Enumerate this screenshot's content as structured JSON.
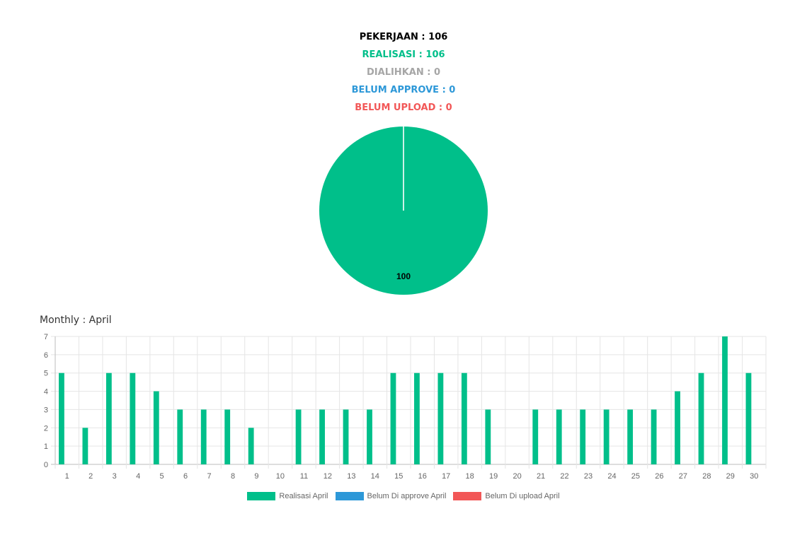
{
  "summary": {
    "pekerjaan": "PEKERJAAN : 106",
    "realisasi": "REALISASI : 106",
    "dialihkan": "DIALIHKAN : 0",
    "belum_approve": "BELUM APPROVE : 0",
    "belum_upload": "BELUM UPLOAD : 0"
  },
  "colors": {
    "realisasi": "#00bf8a",
    "dialihkan": "#a6a6a6",
    "belum_approve": "#2d98d8",
    "belum_upload": "#f25757"
  },
  "monthly_title": "Monthly : April",
  "legend": [
    "Realisasi April",
    "Belum Di approve April",
    "Belum Di upload April"
  ],
  "chart_data": [
    {
      "type": "pie",
      "slices": [
        {
          "label": "Realisasi",
          "value": 100,
          "color": "#00bf8a"
        }
      ],
      "data_labels": [
        "100"
      ]
    },
    {
      "type": "bar",
      "title": "Monthly : April",
      "categories": [
        "1",
        "2",
        "3",
        "4",
        "5",
        "6",
        "7",
        "8",
        "9",
        "10",
        "11",
        "12",
        "13",
        "14",
        "15",
        "16",
        "17",
        "18",
        "19",
        "20",
        "21",
        "22",
        "23",
        "24",
        "25",
        "26",
        "27",
        "28",
        "29",
        "30"
      ],
      "series": [
        {
          "name": "Realisasi April",
          "color": "#00bf8a",
          "values": [
            5,
            2,
            5,
            5,
            4,
            3,
            3,
            3,
            2,
            0,
            3,
            3,
            3,
            3,
            5,
            5,
            5,
            5,
            3,
            0,
            3,
            3,
            3,
            3,
            3,
            3,
            4,
            5,
            7,
            5
          ]
        },
        {
          "name": "Belum Di approve April",
          "color": "#2d98d8",
          "values": [
            0,
            0,
            0,
            0,
            0,
            0,
            0,
            0,
            0,
            0,
            0,
            0,
            0,
            0,
            0,
            0,
            0,
            0,
            0,
            0,
            0,
            0,
            0,
            0,
            0,
            0,
            0,
            0,
            0,
            0
          ]
        },
        {
          "name": "Belum Di upload April",
          "color": "#f25757",
          "values": [
            0,
            0,
            0,
            0,
            0,
            0,
            0,
            0,
            0,
            0,
            0,
            0,
            0,
            0,
            0,
            0,
            0,
            0,
            0,
            0,
            0,
            0,
            0,
            0,
            0,
            0,
            0,
            0,
            0,
            0
          ]
        }
      ],
      "ylim": [
        0,
        7
      ],
      "yticks": [
        0,
        1,
        2,
        3,
        4,
        5,
        6,
        7
      ],
      "grid": true,
      "legend_position": "bottom"
    }
  ]
}
